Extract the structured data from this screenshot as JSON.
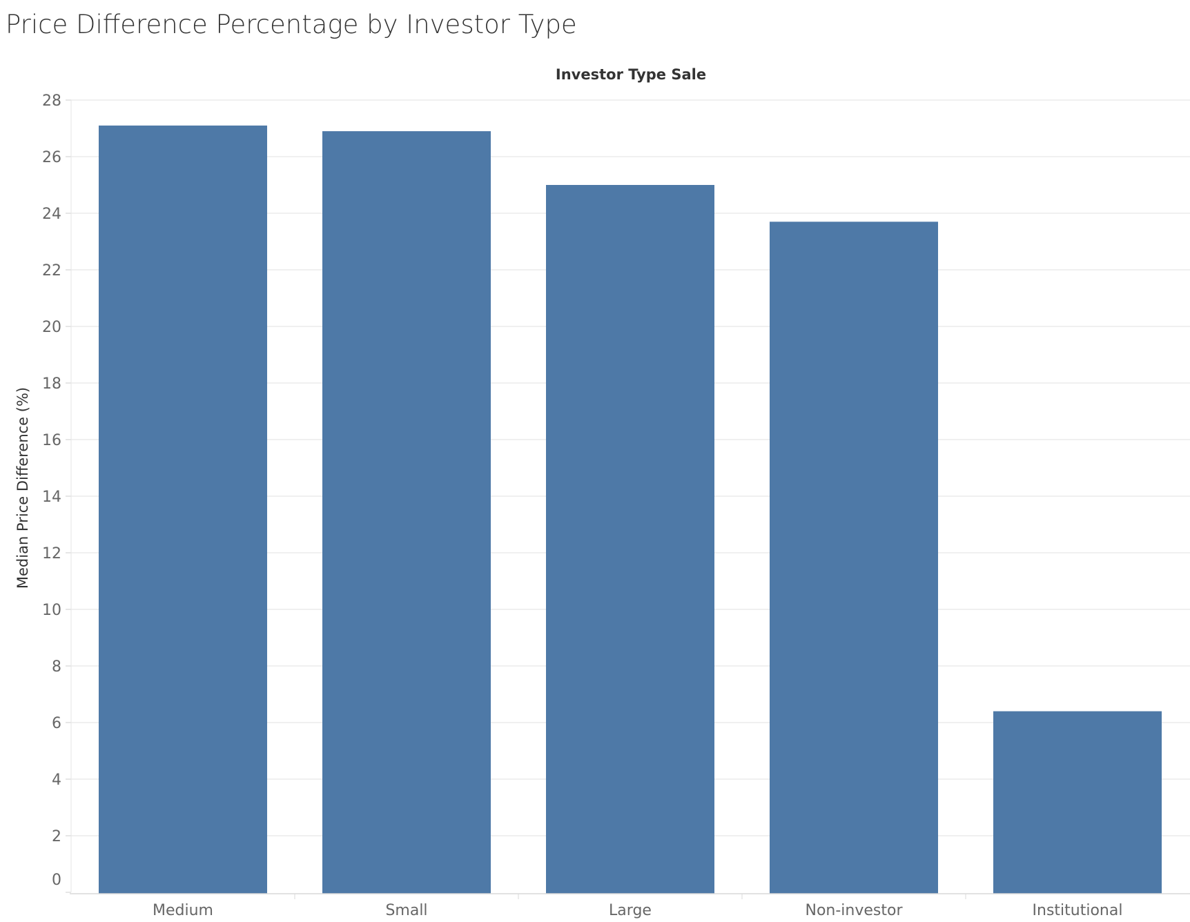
{
  "chart_data": {
    "type": "bar",
    "title": "Price Difference Percentage by Investor Type",
    "x_header": "Investor Type Sale",
    "ylabel": "Median Price Difference (%)",
    "xlabel": "",
    "categories": [
      "Medium",
      "Small",
      "Large",
      "Non-investor",
      "Institutional"
    ],
    "values": [
      27.1,
      26.9,
      25.0,
      23.7,
      6.4
    ],
    "ylim": [
      0,
      28
    ],
    "yticks": [
      0,
      2,
      4,
      6,
      8,
      10,
      12,
      14,
      16,
      18,
      20,
      22,
      24,
      26,
      28
    ],
    "grid": true,
    "bar_color": "#4e79a7",
    "grid_color": "#ececec",
    "axis_label_color": "#666666",
    "title_color": "#333333"
  }
}
